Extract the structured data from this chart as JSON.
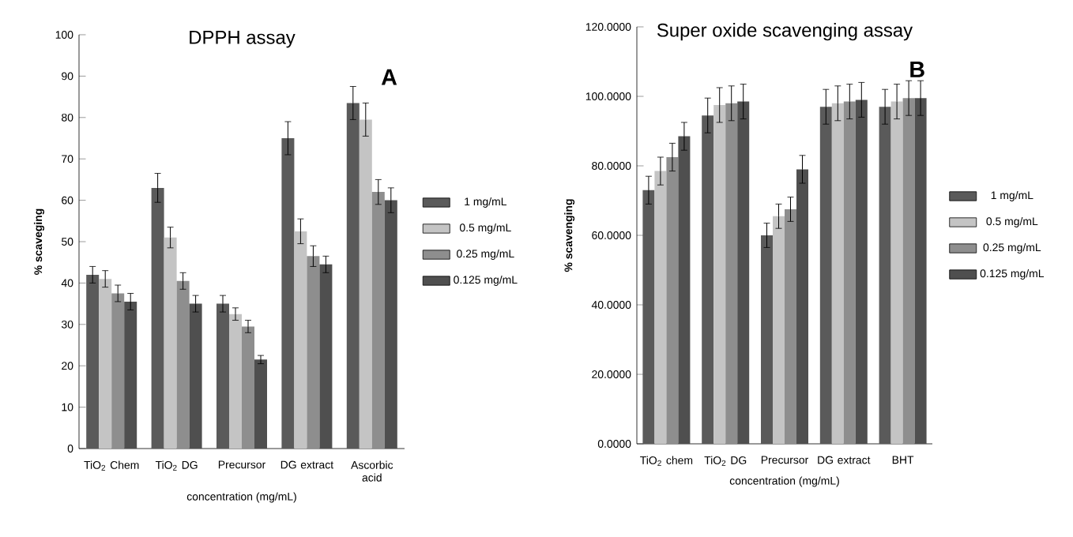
{
  "chart_data": [
    {
      "type": "bar",
      "title": "DPPH assay",
      "xlabel": "concentration (mg/mL)",
      "ylabel": "% scaveging",
      "categories": [
        "TiO$_{2}$ Chem",
        "TiO$_{2}$ DG",
        "Precursor",
        "DG extract",
        "Ascorbic acid"
      ],
      "series": [
        {
          "name": "1 mg/mL",
          "color": "#5a5a5a",
          "values": [
            42,
            63,
            35,
            75,
            83.5
          ],
          "errors": [
            2,
            3.5,
            2,
            4,
            4
          ]
        },
        {
          "name": "0.5 mg/mL",
          "color": "#c4c4c4",
          "values": [
            41,
            51,
            32.5,
            52.5,
            79.5
          ],
          "errors": [
            2,
            2.5,
            1.5,
            3,
            4
          ]
        },
        {
          "name": "0.25 mg/mL",
          "color": "#8e8e8e",
          "values": [
            37.5,
            40.5,
            29.5,
            46.5,
            62
          ],
          "errors": [
            2,
            2,
            1.5,
            2.5,
            3
          ]
        },
        {
          "name": "0.125 mg/mL",
          "color": "#4f4f4f",
          "values": [
            35.5,
            35,
            21.5,
            44.5,
            60
          ],
          "errors": [
            2,
            2,
            1,
            2,
            3
          ]
        }
      ],
      "ylim": [
        0,
        100
      ],
      "yticks": [
        0,
        10,
        20,
        30,
        40,
        50,
        60,
        70,
        80,
        90,
        100
      ],
      "legend": "right",
      "annotations": [
        "A"
      ]
    },
    {
      "type": "bar",
      "title": "Super oxide scavenging assay",
      "xlabel": "concentration (mg/mL)",
      "ylabel": "% scavenging",
      "categories": [
        "TiO$_{2}$ chem",
        "TiO$_{2}$ DG",
        "Precursor",
        "DG extract",
        "BHT"
      ],
      "series": [
        {
          "name": "1 mg/mL",
          "color": "#5a5a5a",
          "values": [
            73,
            94.5,
            60,
            97,
            97
          ],
          "errors": [
            4,
            5,
            3.5,
            5,
            5
          ]
        },
        {
          "name": "0.5 mg/mL",
          "color": "#c4c4c4",
          "values": [
            78.5,
            97.5,
            65.5,
            98,
            98.5
          ],
          "errors": [
            4,
            5,
            3.5,
            5,
            5
          ]
        },
        {
          "name": "0.25 mg/mL",
          "color": "#8e8e8e",
          "values": [
            82.5,
            98,
            67.5,
            98.5,
            99.5
          ],
          "errors": [
            4,
            5,
            3.5,
            5,
            5
          ]
        },
        {
          "name": "0.125 mg/mL",
          "color": "#4f4f4f",
          "values": [
            88.5,
            98.5,
            79,
            99,
            99.5
          ],
          "errors": [
            4,
            5,
            4,
            5,
            5
          ]
        }
      ],
      "ylim": [
        0,
        120
      ],
      "yticks": [
        {
          "value": 0,
          "label": "0.0000"
        },
        {
          "value": 20,
          "label": "20.0000"
        },
        {
          "value": 40,
          "label": "40.0000"
        },
        {
          "value": 60,
          "label": "60.0000"
        },
        {
          "value": 80,
          "label": "80.0000"
        },
        {
          "value": 100,
          "label": "100.0000"
        },
        {
          "value": 120,
          "label": "120.0000"
        }
      ],
      "legend": "right",
      "annotations": [
        "B"
      ]
    }
  ]
}
